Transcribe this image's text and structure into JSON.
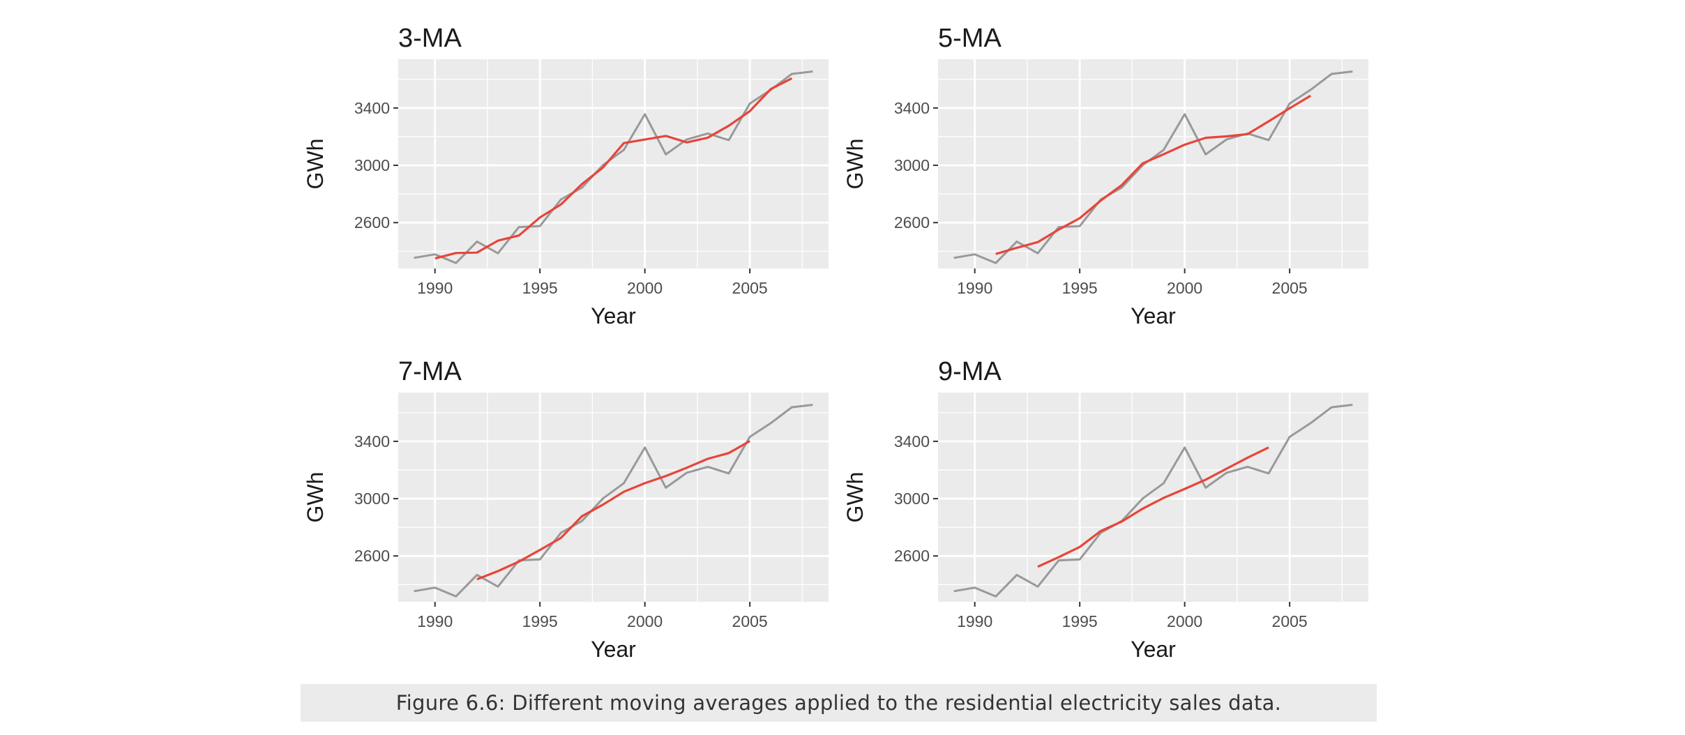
{
  "caption": "Figure 6.6: Different moving averages applied to the residential electricity sales data.",
  "colors": {
    "data_line": "#999999",
    "ma_line": "#e8443a",
    "panel_bg": "#ebebeb",
    "grid": "#ffffff"
  },
  "chart_data": [
    {
      "type": "line",
      "title": "3-MA",
      "xlabel": "Year",
      "ylabel": "GWh",
      "xlim": [
        1988.25,
        2008.75
      ],
      "ylim": [
        2280,
        3740
      ],
      "x_ticks": [
        1990,
        1995,
        2000,
        2005
      ],
      "y_ticks": [
        2600,
        3000,
        3400
      ],
      "grid": true,
      "series": [
        {
          "x": [
            1989,
            1990,
            1991,
            1992,
            1993,
            1994,
            1995,
            1996,
            1997,
            1998,
            1999,
            2000,
            2001,
            2002,
            2003,
            2004,
            2005,
            2006,
            2007,
            2008
          ],
          "values": [
            2354,
            2379,
            2318,
            2468,
            2386,
            2569,
            2576,
            2762,
            2844,
            3001,
            3108,
            3357,
            3076,
            3181,
            3222,
            3176,
            3431,
            3527,
            3638,
            3655
          ]
        },
        {
          "x": [
            1990,
            1991,
            1992,
            1993,
            1994,
            1995,
            1996,
            1997,
            1998,
            1999,
            2000,
            2001,
            2002,
            2003,
            2004,
            2005,
            2006,
            2007
          ],
          "values": [
            2350,
            2388,
            2391,
            2474,
            2510,
            2636,
            2727,
            2869,
            2984,
            3155,
            3180,
            3205,
            3160,
            3193,
            3276,
            3378,
            3532,
            3607
          ]
        }
      ]
    },
    {
      "type": "line",
      "title": "5-MA",
      "xlabel": "Year",
      "ylabel": "GWh",
      "xlim": [
        1988.25,
        2008.75
      ],
      "ylim": [
        2280,
        3740
      ],
      "x_ticks": [
        1990,
        1995,
        2000,
        2005
      ],
      "y_ticks": [
        2600,
        3000,
        3400
      ],
      "grid": true,
      "series": [
        {
          "x": [
            1989,
            1990,
            1991,
            1992,
            1993,
            1994,
            1995,
            1996,
            1997,
            1998,
            1999,
            2000,
            2001,
            2002,
            2003,
            2004,
            2005,
            2006,
            2007,
            2008
          ],
          "values": [
            2354,
            2379,
            2318,
            2468,
            2386,
            2569,
            2576,
            2762,
            2844,
            3001,
            3108,
            3357,
            3076,
            3181,
            3222,
            3176,
            3431,
            3527,
            3638,
            3655
          ]
        },
        {
          "x": [
            1991,
            1992,
            1993,
            1994,
            1995,
            1996,
            1997,
            1998,
            1999,
            2000,
            2001,
            2002,
            2003,
            2004,
            2005,
            2006
          ],
          "values": [
            2381,
            2424,
            2464,
            2552,
            2631,
            2754,
            2862,
            3014,
            3077,
            3144,
            3192,
            3202,
            3218,
            3307,
            3398,
            3486
          ]
        }
      ]
    },
    {
      "type": "line",
      "title": "7-MA",
      "xlabel": "Year",
      "ylabel": "GWh",
      "xlim": [
        1988.25,
        2008.75
      ],
      "ylim": [
        2280,
        3740
      ],
      "x_ticks": [
        1990,
        1995,
        2000,
        2005
      ],
      "y_ticks": [
        2600,
        3000,
        3400
      ],
      "grid": true,
      "series": [
        {
          "x": [
            1989,
            1990,
            1991,
            1992,
            1993,
            1994,
            1995,
            1996,
            1997,
            1998,
            1999,
            2000,
            2001,
            2002,
            2003,
            2004,
            2005,
            2006,
            2007,
            2008
          ],
          "values": [
            2354,
            2379,
            2318,
            2468,
            2386,
            2569,
            2576,
            2762,
            2844,
            3001,
            3108,
            3357,
            3076,
            3181,
            3222,
            3176,
            3431,
            3527,
            3638,
            3655
          ]
        },
        {
          "x": [
            1992,
            1993,
            1994,
            1995,
            1996,
            1997,
            1998,
            1999,
            2000,
            2001,
            2002,
            2003,
            2004,
            2005
          ],
          "values": [
            2437,
            2494,
            2561,
            2642,
            2726,
            2877,
            2958,
            3048,
            3108,
            3158,
            3216,
            3278,
            3318,
            3402
          ]
        }
      ]
    },
    {
      "type": "line",
      "title": "9-MA",
      "xlabel": "Year",
      "ylabel": "GWh",
      "xlim": [
        1988.25,
        2008.75
      ],
      "ylim": [
        2280,
        3740
      ],
      "x_ticks": [
        1990,
        1995,
        2000,
        2005
      ],
      "y_ticks": [
        2600,
        3000,
        3400
      ],
      "grid": true,
      "series": [
        {
          "x": [
            1989,
            1990,
            1991,
            1992,
            1993,
            1994,
            1995,
            1996,
            1997,
            1998,
            1999,
            2000,
            2001,
            2002,
            2003,
            2004,
            2005,
            2006,
            2007,
            2008
          ],
          "values": [
            2354,
            2379,
            2318,
            2468,
            2386,
            2569,
            2576,
            2762,
            2844,
            3001,
            3108,
            3357,
            3076,
            3181,
            3222,
            3176,
            3431,
            3527,
            3638,
            3655
          ]
        },
        {
          "x": [
            1993,
            1994,
            1995,
            1996,
            1997,
            1998,
            1999,
            2000,
            2001,
            2002,
            2003,
            2004
          ],
          "values": [
            2525,
            2592,
            2663,
            2774,
            2840,
            2930,
            3005,
            3068,
            3132,
            3209,
            3286,
            3357
          ]
        }
      ]
    }
  ]
}
